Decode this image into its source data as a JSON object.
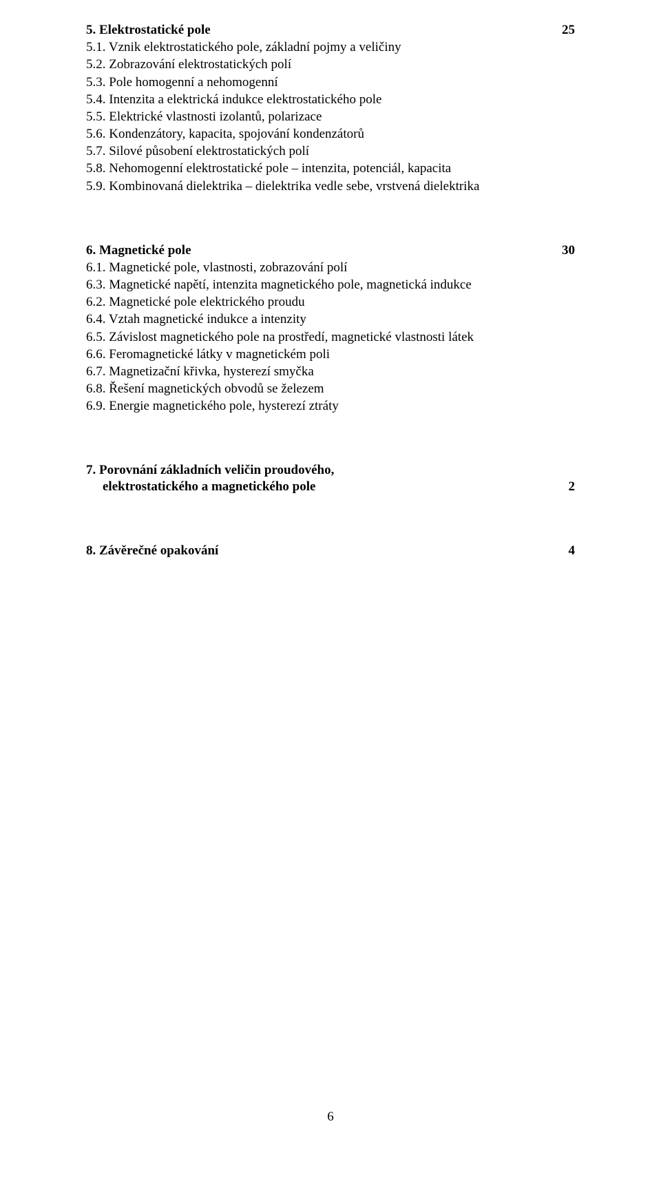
{
  "colors": {
    "text": "#000000",
    "background": "#ffffff"
  },
  "typography": {
    "font_family": "Times New Roman",
    "body_fontsize_pt": 14,
    "heading_weight": "bold"
  },
  "sections": [
    {
      "title": "5. Elektrostatické pole",
      "page": "25",
      "items": [
        "5.1. Vznik elektrostatického pole, základní pojmy a veličiny",
        "5.2. Zobrazování elektrostatických polí",
        "5.3. Pole homogenní a nehomogenní",
        "5.4. Intenzita a elektrická indukce elektrostatického pole",
        "5.5. Elektrické vlastnosti izolantů, polarizace",
        "5.6. Kondenzátory, kapacita, spojování kondenzátorů",
        "5.7. Silové působení elektrostatických polí",
        "5.8. Nehomogenní elektrostatické pole – intenzita, potenciál, kapacita",
        "5.9. Kombinovaná dielektrika – dielektrika vedle sebe, vrstvená dielektrika"
      ]
    },
    {
      "title": "6. Magnetické pole",
      "page": "30",
      "items": [
        "6.1. Magnetické pole, vlastnosti, zobrazování polí",
        "6.3. Magnetické napětí, intenzita magnetického pole, magnetická indukce",
        "6.2. Magnetické pole elektrického proudu",
        "6.4. Vztah magnetické indukce a intenzity",
        "6.5. Závislost magnetického pole na prostředí, magnetické vlastnosti látek",
        "6.6. Feromagnetické látky v magnetickém poli",
        "6.7. Magnetizační křivka, hysterezí smyčka",
        "6.8. Řešení magnetických obvodů se železem",
        "6.9. Energie magnetického pole, hysterezí ztráty"
      ]
    },
    {
      "title_line1": "7. Porovnání základních veličin proudového,",
      "title_line2": "elektrostatického a magnetického pole",
      "page": "2",
      "items": []
    },
    {
      "title": "8. Závěrečné opakování",
      "page": "4",
      "items": []
    }
  ],
  "footer_page_number": "6"
}
